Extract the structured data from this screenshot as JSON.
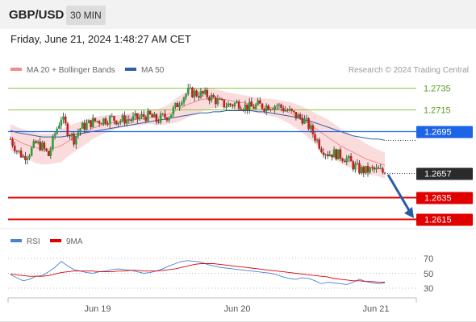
{
  "header": {
    "symbol": "GBP/USD",
    "interval": "30 MIN"
  },
  "timestamp": "Friday, June 21, 2024 1:48:27 AM CET",
  "legend": {
    "ma20_bb": "MA 20 + Bollinger Bands",
    "ma50": "MA 50",
    "copyright": "Research © 2024 Trading Central"
  },
  "colors": {
    "bands_fill": "#fbdcdc",
    "ma20": "#f08c8c",
    "ma50": "#2e5fa8",
    "candle_up": "#2e9e3e",
    "candle_down": "#c81e1e",
    "resistance": "#8cc63f",
    "pivot": "#1e64e6",
    "support": "#e00000",
    "rsi": "#4d7fd6",
    "rsi_ma": "#e00000",
    "arrow": "#2a5aa8"
  },
  "chart_data": [
    {
      "type": "candlestick",
      "x_ticks": [
        "Jun 19",
        "Jun 20",
        "Jun 21"
      ],
      "ylim": [
        1.2605,
        1.2745
      ],
      "levels": [
        {
          "value": 1.2735,
          "label": "1.2735",
          "kind": "resistance"
        },
        {
          "value": 1.2715,
          "label": "1.2715",
          "kind": "resistance"
        },
        {
          "value": 1.2695,
          "label": "1.2695",
          "kind": "pivot"
        },
        {
          "value": 1.2635,
          "label": "1.2635",
          "kind": "support"
        },
        {
          "value": 1.2615,
          "label": "1.2615",
          "kind": "support"
        }
      ],
      "last_price": {
        "value": 1.2657,
        "label": "1.2657"
      },
      "projection": {
        "from": 1.2657,
        "to": 1.2615,
        "direction": "down"
      },
      "series": [
        {
          "name": "MA 20 + Bollinger Bands"
        },
        {
          "name": "MA 50"
        }
      ],
      "close_path": [
        1.2688,
        1.2678,
        1.2672,
        1.2676,
        1.2684,
        1.2681,
        1.2673,
        1.2693,
        1.2708,
        1.2696,
        1.2688,
        1.2698,
        1.2701,
        1.2704,
        1.2705,
        1.2706,
        1.2707,
        1.2705,
        1.2706,
        1.2706,
        1.2707,
        1.2709,
        1.2709,
        1.2705,
        1.2708,
        1.271,
        1.2717,
        1.2726,
        1.2731,
        1.273,
        1.2729,
        1.2728,
        1.2725,
        1.2721,
        1.2719,
        1.272,
        1.2721,
        1.2718,
        1.2717,
        1.2719,
        1.2718,
        1.2719,
        1.2719,
        1.2716,
        1.2713,
        1.2709,
        1.2707,
        1.27,
        1.269,
        1.268,
        1.2675,
        1.2675,
        1.2673,
        1.267,
        1.2664,
        1.266,
        1.2659,
        1.266,
        1.2659,
        1.2657
      ],
      "ma20_path": [
        1.269,
        1.2687,
        1.2684,
        1.2682,
        1.268,
        1.2679,
        1.2679,
        1.268,
        1.2682,
        1.2686,
        1.2689,
        1.2692,
        1.2695,
        1.2698,
        1.27,
        1.2702,
        1.2703,
        1.2704,
        1.2705,
        1.2706,
        1.2706,
        1.2707,
        1.2708,
        1.2708,
        1.2709,
        1.2711,
        1.2714,
        1.2717,
        1.272,
        1.2722,
        1.2724,
        1.2725,
        1.2725,
        1.2725,
        1.2724,
        1.2723,
        1.2722,
        1.2721,
        1.272,
        1.2719,
        1.2718,
        1.2717,
        1.2716,
        1.2714,
        1.2712,
        1.2709,
        1.2706,
        1.2702,
        1.2698,
        1.2694,
        1.269,
        1.2686,
        1.2682,
        1.2679,
        1.2676,
        1.2673,
        1.267,
        1.2668,
        1.2666,
        1.2664
      ],
      "band_halfwidth": [
        0.0012,
        0.0012,
        0.0013,
        0.0013,
        0.0014,
        0.0014,
        0.0014,
        0.0014,
        0.0015,
        0.0014,
        0.0013,
        0.0012,
        0.0011,
        0.001,
        0.0009,
        0.0008,
        0.0007,
        0.0006,
        0.0006,
        0.0006,
        0.0006,
        0.0006,
        0.0006,
        0.0007,
        0.0008,
        0.0009,
        0.0011,
        0.0012,
        0.0012,
        0.0012,
        0.0011,
        0.001,
        0.0009,
        0.0008,
        0.0007,
        0.0007,
        0.0007,
        0.0007,
        0.0007,
        0.0007,
        0.0007,
        0.0008,
        0.0008,
        0.0009,
        0.001,
        0.0011,
        0.0012,
        0.0013,
        0.0014,
        0.0015,
        0.0016,
        0.0016,
        0.0016,
        0.0016,
        0.0015,
        0.0015,
        0.0014,
        0.0013,
        0.0012,
        0.0012
      ],
      "ma50_path": [
        1.2696,
        1.2694,
        1.2693,
        1.2692,
        1.2691,
        1.269,
        1.269,
        1.269,
        1.269,
        1.2691,
        1.2692,
        1.2693,
        1.2694,
        1.2695,
        1.2696,
        1.2697,
        1.2698,
        1.2699,
        1.27,
        1.2701,
        1.2702,
        1.2703,
        1.2704,
        1.2705,
        1.2706,
        1.2707,
        1.2708,
        1.2709,
        1.271,
        1.2711,
        1.2712,
        1.2712,
        1.2713,
        1.2713,
        1.2714,
        1.2714,
        1.2714,
        1.2714,
        1.2714,
        1.2713,
        1.2713,
        1.2712,
        1.2711,
        1.271,
        1.2709,
        1.2708,
        1.2706,
        1.2705,
        1.2703,
        1.2701,
        1.2699,
        1.2697,
        1.2695,
        1.2693,
        1.2691,
        1.269,
        1.2689,
        1.2688,
        1.2688,
        1.2687
      ]
    },
    {
      "type": "line",
      "yticks": [
        "70",
        "50",
        "30"
      ],
      "ylim": [
        20,
        80
      ],
      "series": [
        {
          "name": "RSI",
          "values": [
            48,
            44,
            40,
            42,
            46,
            47,
            52,
            58,
            66,
            60,
            55,
            53,
            51,
            50,
            52,
            53,
            55,
            56,
            55,
            54,
            52,
            50,
            51,
            53,
            56,
            60,
            63,
            66,
            67,
            66,
            65,
            62,
            60,
            58,
            57,
            56,
            55,
            54,
            53,
            52,
            51,
            50,
            48,
            45,
            43,
            42,
            44,
            43,
            40,
            36,
            38,
            37,
            36,
            35,
            38,
            42,
            39,
            37,
            36,
            37
          ]
        },
        {
          "name": "9MA",
          "values": [
            49,
            48,
            47,
            46,
            46,
            46,
            47,
            49,
            51,
            52,
            53,
            53,
            53,
            53,
            52,
            52,
            52,
            53,
            53,
            54,
            54,
            53,
            53,
            53,
            54,
            55,
            56,
            58,
            60,
            62,
            63,
            63,
            63,
            62,
            61,
            60,
            59,
            58,
            57,
            56,
            55,
            54,
            53,
            52,
            51,
            50,
            49,
            48,
            47,
            46,
            45,
            43,
            42,
            41,
            40,
            40,
            39,
            39,
            38,
            38
          ]
        }
      ]
    }
  ]
}
